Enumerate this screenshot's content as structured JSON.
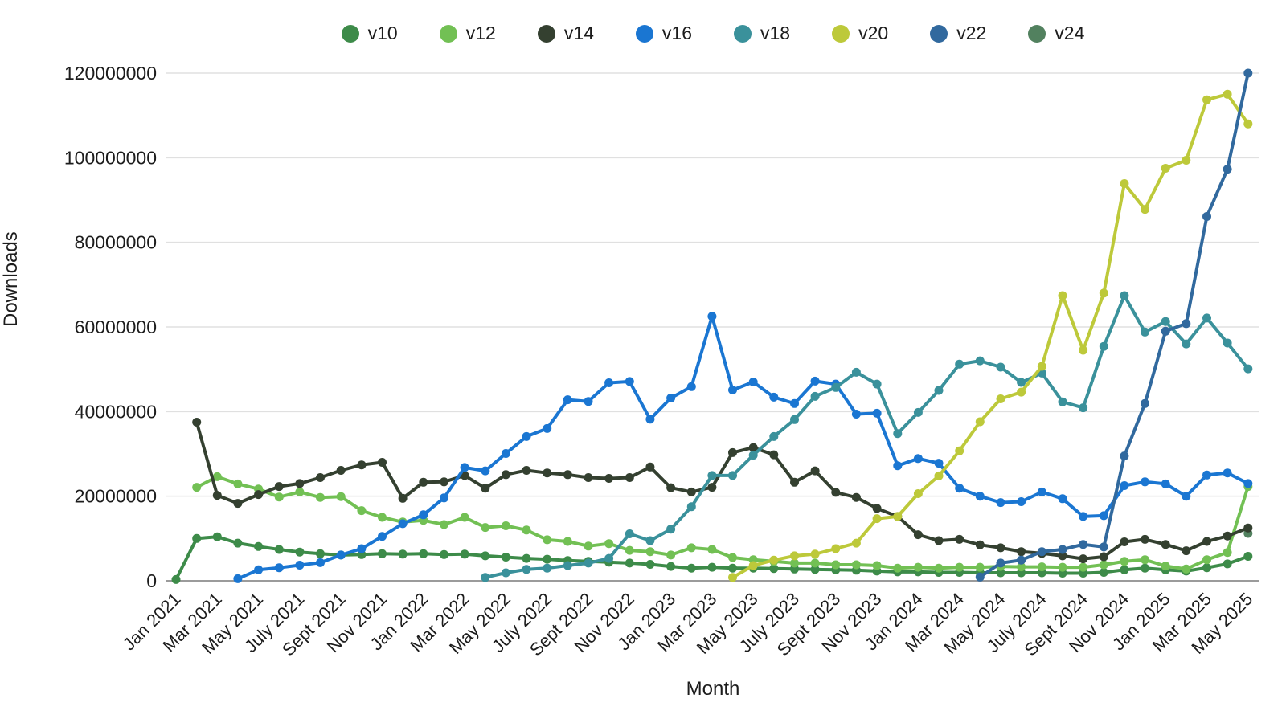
{
  "page": {
    "background": "#ffffff",
    "grid_color": "#e0e0e0",
    "axis_line_color": "#9b9b9b",
    "text_color": "#1c1c1c"
  },
  "chart_data": {
    "type": "line",
    "title": "",
    "xlabel": "Month",
    "ylabel": "Downloads",
    "legend_position": "top",
    "grid": "horizontal",
    "ylim": [
      0,
      120000000
    ],
    "y_tick_labels": [
      "0",
      "20000000",
      "40000000",
      "60000000",
      "80000000",
      "100000000",
      "120000000"
    ],
    "x_tick_step": 2,
    "values_unit": "millions of downloads (multiply by 1,000,000)",
    "categories": [
      "Jan 2021",
      "Feb 2021",
      "Mar 2021",
      "Apr 2021",
      "May 2021",
      "June 2021",
      "July 2021",
      "Aug 2021",
      "Sept 2021",
      "Oct 2021",
      "Nov 2021",
      "Dec 2021",
      "Jan 2022",
      "Feb 2022",
      "Mar 2022",
      "Apr 2022",
      "May 2022",
      "June 2022",
      "July 2022",
      "Aug 2022",
      "Sept 2022",
      "Oct 2022",
      "Nov 2022",
      "Dec 2022",
      "Jan 2023",
      "Feb 2023",
      "Mar 2023",
      "Apr 2023",
      "May 2023",
      "June 2023",
      "July 2023",
      "Aug 2023",
      "Sept 2023",
      "Oct 2023",
      "Nov 2023",
      "Dec 2023",
      "Jan 2024",
      "Feb 2024",
      "Mar 2024",
      "Apr 2024",
      "May 2024",
      "June 2024",
      "July 2024",
      "Aug 2024",
      "Sept 2024",
      "Oct 2024",
      "Nov 2024",
      "Dec 2024",
      "Jan 2025",
      "Feb 2025",
      "Mar 2025",
      "Apr 2025",
      "May 2025"
    ],
    "series": [
      {
        "name": "v10",
        "color": "#3d8b49",
        "values": [
          0.3,
          10.0,
          10.4,
          8.9,
          8.1,
          7.4,
          6.8,
          6.4,
          6.1,
          6.2,
          6.4,
          6.3,
          6.4,
          6.2,
          6.3,
          5.9,
          5.6,
          5.3,
          5.1,
          4.8,
          4.6,
          4.4,
          4.2,
          3.9,
          3.4,
          3.0,
          3.2,
          3.0,
          3.0,
          2.9,
          2.8,
          2.7,
          2.6,
          2.5,
          2.3,
          2.1,
          2.1,
          2.0,
          2.0,
          1.9,
          1.9,
          1.9,
          1.9,
          1.8,
          1.8,
          2.0,
          2.6,
          3.0,
          2.6,
          2.3,
          3.1,
          4.0,
          5.8
        ]
      },
      {
        "name": "v12",
        "color": "#72c054",
        "values": [
          null,
          22.1,
          24.6,
          22.9,
          21.7,
          19.8,
          21.0,
          19.7,
          19.9,
          16.6,
          15.0,
          13.9,
          14.3,
          13.3,
          15.0,
          12.6,
          13.0,
          12.0,
          9.7,
          9.3,
          8.2,
          8.8,
          7.2,
          6.9,
          6.1,
          7.8,
          7.4,
          5.5,
          5.0,
          4.6,
          4.2,
          4.2,
          3.8,
          3.8,
          3.6,
          3.0,
          3.2,
          3.0,
          3.2,
          3.2,
          3.4,
          3.3,
          3.3,
          3.2,
          3.2,
          3.8,
          4.6,
          5.0,
          3.5,
          2.8,
          5.0,
          6.7,
          22.3
        ]
      },
      {
        "name": "v14",
        "color": "#344030",
        "values": [
          null,
          37.5,
          20.2,
          18.3,
          20.4,
          22.3,
          23.0,
          24.4,
          26.1,
          27.4,
          28.0,
          19.5,
          23.3,
          23.4,
          24.9,
          21.9,
          25.1,
          26.1,
          25.5,
          25.1,
          24.4,
          24.2,
          24.4,
          26.9,
          22.0,
          21.0,
          22.1,
          30.3,
          31.5,
          29.8,
          23.3,
          26.0,
          20.9,
          19.7,
          17.1,
          15.2,
          10.9,
          9.5,
          9.8,
          8.5,
          7.8,
          6.9,
          6.5,
          5.9,
          5.2,
          5.7,
          9.2,
          9.8,
          8.6,
          7.1,
          9.3,
          10.6,
          12.5
        ]
      },
      {
        "name": "v16",
        "color": "#1a76d2",
        "values": [
          null,
          null,
          null,
          0.5,
          2.6,
          3.1,
          3.7,
          4.3,
          6.1,
          7.6,
          10.5,
          13.5,
          15.6,
          19.6,
          26.8,
          26.0,
          30.1,
          34.1,
          36.0,
          42.8,
          42.4,
          46.8,
          47.1,
          38.2,
          43.2,
          45.9,
          62.5,
          45.1,
          47.0,
          43.4,
          41.9,
          47.2,
          46.5,
          39.4,
          39.6,
          27.2,
          28.9,
          27.8,
          21.9,
          20.0,
          18.5,
          18.7,
          21.0,
          19.4,
          15.2,
          15.4,
          22.5,
          23.4,
          22.9,
          20.0,
          25.0,
          25.5,
          23.0
        ]
      },
      {
        "name": "v18",
        "color": "#3a919b",
        "values": [
          null,
          null,
          null,
          null,
          null,
          null,
          null,
          null,
          null,
          null,
          null,
          null,
          null,
          null,
          null,
          0.8,
          1.9,
          2.7,
          3.0,
          3.6,
          4.2,
          5.3,
          11.1,
          9.5,
          12.2,
          17.5,
          24.9,
          24.9,
          29.7,
          34.1,
          38.1,
          43.6,
          45.7,
          49.3,
          46.5,
          34.8,
          39.8,
          45.0,
          51.2,
          52.0,
          50.5,
          46.9,
          49.1,
          42.3,
          40.9,
          55.4,
          67.4,
          58.8,
          61.3,
          56.0,
          62.1,
          56.2,
          50.1
        ]
      },
      {
        "name": "v20",
        "color": "#bdc93a",
        "values": [
          null,
          null,
          null,
          null,
          null,
          null,
          null,
          null,
          null,
          null,
          null,
          null,
          null,
          null,
          null,
          null,
          null,
          null,
          null,
          null,
          null,
          null,
          null,
          null,
          null,
          null,
          null,
          0.8,
          3.6,
          4.9,
          5.9,
          6.3,
          7.6,
          8.9,
          14.7,
          15.2,
          20.6,
          24.8,
          30.7,
          37.6,
          43.0,
          44.6,
          50.7,
          67.4,
          54.5,
          68.0,
          93.9,
          87.8,
          97.5,
          99.4,
          113.7,
          115.0,
          108.0
        ]
      },
      {
        "name": "v22",
        "color": "#31699e",
        "values": [
          null,
          null,
          null,
          null,
          null,
          null,
          null,
          null,
          null,
          null,
          null,
          null,
          null,
          null,
          null,
          null,
          null,
          null,
          null,
          null,
          null,
          null,
          null,
          null,
          null,
          null,
          null,
          null,
          null,
          null,
          null,
          null,
          null,
          null,
          null,
          null,
          null,
          null,
          null,
          0.9,
          4.2,
          4.9,
          6.9,
          7.4,
          8.6,
          8.0,
          29.5,
          41.9,
          59.0,
          60.8,
          86.1,
          97.3,
          120.0
        ]
      },
      {
        "name": "v24",
        "color": "#52815f",
        "values": [
          null,
          null,
          null,
          null,
          null,
          null,
          null,
          null,
          null,
          null,
          null,
          null,
          null,
          null,
          null,
          null,
          null,
          null,
          null,
          null,
          null,
          null,
          null,
          null,
          null,
          null,
          null,
          null,
          null,
          null,
          null,
          null,
          null,
          null,
          null,
          null,
          null,
          null,
          null,
          null,
          null,
          null,
          null,
          null,
          null,
          null,
          null,
          null,
          null,
          null,
          null,
          null,
          11.2
        ]
      }
    ]
  }
}
